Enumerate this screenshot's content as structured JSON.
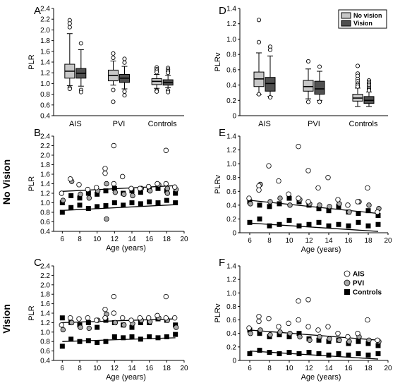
{
  "figure": {
    "row_labels": [
      "No Vision",
      "Vision"
    ],
    "panel_letters": [
      "A",
      "B",
      "C",
      "D",
      "E",
      "F"
    ]
  },
  "colors": {
    "no_vision_box": "#c8c8c8",
    "vision_box": "#505050",
    "ais_marker": "#ffffff",
    "pvi_marker": "#a8a8a8",
    "controls_marker": "#000000"
  },
  "chart_data": [
    {
      "panel": "A",
      "type": "box",
      "title": "",
      "xlabel": "",
      "ylabel": "PLR",
      "ylim": [
        0.4,
        2.4
      ],
      "yticks": [
        "0.4",
        "0.6",
        "0.8",
        "1.0",
        "1.2",
        "1.4",
        "1.6",
        "1.8",
        "2.0",
        "2.2",
        "2.4"
      ],
      "categories": [
        "AIS",
        "PVI",
        "Controls"
      ],
      "series": [
        {
          "name": "No vision",
          "boxes": [
            {
              "min": 0.96,
              "q1": 1.1,
              "median": 1.23,
              "q3": 1.36,
              "max": 1.93,
              "outliers": [
                2.18,
                2.12,
                2.05,
                0.92,
                0.9
              ]
            },
            {
              "min": 0.97,
              "q1": 1.05,
              "median": 1.15,
              "q3": 1.25,
              "max": 1.42,
              "outliers": [
                1.56,
                1.48,
                0.88,
                0.66
              ]
            },
            {
              "min": 0.91,
              "q1": 0.98,
              "median": 1.04,
              "q3": 1.09,
              "max": 1.17,
              "outliers": [
                1.3,
                1.27,
                1.24,
                1.21,
                0.87,
                0.85
              ]
            }
          ]
        },
        {
          "name": "Vision",
          "boxes": [
            {
              "min": 0.95,
              "q1": 1.1,
              "median": 1.19,
              "q3": 1.28,
              "max": 1.63,
              "outliers": [
                1.75,
                0.88,
                0.84
              ]
            },
            {
              "min": 0.9,
              "q1": 1.02,
              "median": 1.1,
              "q3": 1.17,
              "max": 1.32,
              "outliers": [
                1.46,
                1.39,
                0.85,
                0.78
              ]
            },
            {
              "min": 0.92,
              "q1": 0.97,
              "median": 1.02,
              "q3": 1.07,
              "max": 1.15,
              "outliers": [
                1.29,
                1.26,
                1.23,
                1.2,
                0.87,
                0.84
              ]
            }
          ]
        }
      ]
    },
    {
      "panel": "D",
      "type": "box",
      "title": "",
      "xlabel": "",
      "ylabel": "PLRv",
      "ylim": [
        0,
        1.4
      ],
      "yticks": [
        "0",
        "0.2",
        "0.4",
        "0.6",
        "0.8",
        "1.0",
        "1.2",
        "1.4"
      ],
      "categories": [
        "AIS",
        "PVI",
        "Controls"
      ],
      "legend": {
        "position": "top-right",
        "entries": [
          "No vision",
          "Vision"
        ]
      },
      "series": [
        {
          "name": "No vision",
          "boxes": [
            {
              "min": 0.28,
              "q1": 0.38,
              "median": 0.48,
              "q3": 0.57,
              "max": 0.82,
              "outliers": [
                1.25,
                0.96,
                0.28
              ]
            },
            {
              "min": 0.22,
              "q1": 0.32,
              "median": 0.38,
              "q3": 0.46,
              "max": 0.61,
              "outliers": [
                0.71,
                0.18
              ]
            },
            {
              "min": 0.12,
              "q1": 0.19,
              "median": 0.23,
              "q3": 0.28,
              "max": 0.36,
              "outliers": [
                0.65,
                0.55,
                0.52,
                0.48,
                0.45,
                0.42,
                0.4,
                0.38
              ]
            }
          ]
        },
        {
          "name": "Vision",
          "boxes": [
            {
              "min": 0.25,
              "q1": 0.32,
              "median": 0.42,
              "q3": 0.5,
              "max": 0.78,
              "outliers": [
                0.9,
                0.86,
                0.24
              ]
            },
            {
              "min": 0.2,
              "q1": 0.28,
              "median": 0.35,
              "q3": 0.45,
              "max": 0.58,
              "outliers": [
                0.64,
                0.18
              ]
            },
            {
              "min": 0.12,
              "q1": 0.16,
              "median": 0.2,
              "q3": 0.25,
              "max": 0.31,
              "outliers": [
                0.46,
                0.44,
                0.42,
                0.4,
                0.38,
                0.36,
                0.34,
                0.33
              ]
            }
          ]
        }
      ]
    },
    {
      "panel": "B",
      "type": "scatter",
      "title": "",
      "xlabel": "Age (years)",
      "ylabel": "PLR",
      "xlim": [
        5,
        20
      ],
      "xticks": [
        "6",
        "8",
        "10",
        "12",
        "14",
        "16",
        "18",
        "20"
      ],
      "ylim": [
        0.4,
        2.4
      ],
      "yticks": [
        "0.4",
        "0.6",
        "0.8",
        "1.0",
        "1.2",
        "1.4",
        "1.6",
        "1.8",
        "2.0",
        "2.2",
        "2.4"
      ],
      "series": [
        {
          "name": "AIS",
          "x": [
            6,
            7,
            8,
            9,
            10,
            11,
            11,
            12,
            12,
            13,
            14,
            15,
            16,
            17,
            18,
            18,
            19
          ],
          "y": [
            1.2,
            1.5,
            1.38,
            1.28,
            1.32,
            1.72,
            1.62,
            2.2,
            1.4,
            1.55,
            1.3,
            1.3,
            1.34,
            1.4,
            2.1,
            1.4,
            1.33
          ]
        },
        {
          "name": "PVI",
          "x": [
            6,
            7,
            8,
            9,
            10,
            11,
            11,
            12,
            13,
            14,
            15,
            16,
            17,
            18,
            18,
            19
          ],
          "y": [
            1.05,
            1.45,
            1.18,
            1.1,
            1.25,
            1.4,
            0.66,
            1.22,
            1.18,
            1.15,
            1.3,
            1.25,
            1.38,
            1.3,
            1.2,
            1.28
          ]
        },
        {
          "name": "Controls",
          "x": [
            6,
            6,
            7,
            7,
            8,
            8,
            9,
            9,
            10,
            10,
            11,
            11,
            12,
            12,
            13,
            13,
            14,
            14,
            15,
            15,
            16,
            16,
            17,
            17,
            18,
            18,
            19,
            19
          ],
          "y": [
            0.8,
            1.0,
            0.9,
            1.15,
            0.95,
            1.1,
            0.88,
            1.2,
            0.92,
            1.18,
            0.94,
            1.25,
            1.0,
            1.3,
            0.95,
            1.2,
            1.0,
            1.25,
            0.98,
            1.22,
            1.02,
            1.28,
            1.0,
            1.3,
            1.05,
            1.25,
            1.0,
            1.2
          ]
        }
      ],
      "bands": [
        {
          "x": [
            6,
            19
          ],
          "y": [
            1.24,
            1.36
          ]
        },
        {
          "x": [
            6,
            19
          ],
          "y": [
            0.84,
            0.96
          ]
        }
      ]
    },
    {
      "panel": "E",
      "type": "scatter",
      "title": "",
      "xlabel": "Age (years)",
      "ylabel": "PLRv",
      "xlim": [
        5,
        20
      ],
      "xticks": [
        "6",
        "8",
        "10",
        "12",
        "14",
        "16",
        "18",
        "20"
      ],
      "ylim": [
        0,
        1.4
      ],
      "yticks": [
        "0",
        "0.2",
        "0.4",
        "0.6",
        "0.8",
        "1.0",
        "1.2",
        "1.4"
      ],
      "series": [
        {
          "name": "AIS",
          "x": [
            6,
            7,
            7,
            8,
            9,
            10,
            11,
            11,
            12,
            12,
            13,
            14,
            15,
            16,
            17,
            18,
            19
          ],
          "y": [
            0.5,
            0.68,
            0.62,
            0.97,
            0.75,
            0.56,
            1.25,
            0.5,
            0.9,
            0.45,
            0.65,
            0.8,
            0.48,
            0.4,
            0.45,
            0.65,
            0.3
          ]
        },
        {
          "name": "PVI",
          "x": [
            6,
            7,
            8,
            9,
            10,
            11,
            12,
            13,
            14,
            15,
            16,
            17,
            18,
            19
          ],
          "y": [
            0.42,
            0.7,
            0.45,
            0.5,
            0.4,
            0.48,
            0.42,
            0.4,
            0.38,
            0.42,
            0.3,
            0.45,
            0.4,
            0.35
          ]
        },
        {
          "name": "Controls",
          "x": [
            6,
            6,
            7,
            7,
            8,
            8,
            9,
            9,
            10,
            10,
            11,
            11,
            12,
            12,
            13,
            13,
            14,
            14,
            15,
            15,
            16,
            16,
            17,
            17,
            18,
            18,
            19,
            19
          ],
          "y": [
            0.15,
            0.45,
            0.2,
            0.4,
            0.1,
            0.38,
            0.12,
            0.42,
            0.18,
            0.5,
            0.1,
            0.45,
            0.12,
            0.4,
            0.15,
            0.35,
            0.1,
            0.32,
            0.12,
            0.38,
            0.1,
            0.3,
            0.15,
            0.28,
            0.1,
            0.32,
            0.12,
            0.25
          ]
        }
      ],
      "bands": [
        {
          "x": [
            6,
            19
          ],
          "y": [
            0.47,
            0.28
          ]
        },
        {
          "x": [
            6,
            19
          ],
          "y": [
            0.14,
            0.02
          ]
        }
      ]
    },
    {
      "panel": "C",
      "type": "scatter",
      "title": "",
      "xlabel": "Age (years)",
      "ylabel": "PLR",
      "xlim": [
        5,
        20
      ],
      "xticks": [
        "6",
        "8",
        "10",
        "12",
        "14",
        "16",
        "18",
        "20"
      ],
      "ylim": [
        0.4,
        2.4
      ],
      "yticks": [
        "0.4",
        "0.6",
        "0.8",
        "1.0",
        "1.2",
        "1.4",
        "1.6",
        "1.8",
        "2.0",
        "2.2",
        "2.4"
      ],
      "series": [
        {
          "name": "AIS",
          "x": [
            6,
            7,
            8,
            9,
            10,
            11,
            11,
            12,
            12,
            13,
            14,
            15,
            16,
            17,
            18,
            18,
            19
          ],
          "y": [
            1.15,
            1.3,
            1.28,
            1.3,
            1.25,
            1.48,
            1.3,
            1.75,
            1.4,
            1.3,
            1.25,
            1.3,
            1.3,
            1.35,
            1.75,
            1.3,
            1.3
          ]
        },
        {
          "name": "PVI",
          "x": [
            6,
            7,
            8,
            9,
            10,
            11,
            12,
            13,
            14,
            15,
            16,
            17,
            18,
            19
          ],
          "y": [
            1.05,
            1.2,
            1.1,
            1.08,
            1.25,
            1.38,
            1.2,
            1.15,
            1.18,
            1.25,
            1.22,
            1.3,
            1.25,
            1.1
          ]
        },
        {
          "name": "Controls",
          "x": [
            6,
            6,
            7,
            7,
            8,
            8,
            9,
            9,
            10,
            10,
            11,
            11,
            12,
            12,
            13,
            13,
            14,
            14,
            15,
            15,
            16,
            16,
            17,
            17,
            18,
            18,
            19,
            19
          ],
          "y": [
            0.7,
            1.3,
            0.85,
            1.2,
            0.8,
            1.15,
            0.82,
            1.2,
            0.78,
            1.1,
            0.8,
            1.25,
            0.9,
            1.2,
            0.88,
            1.15,
            0.9,
            1.1,
            0.85,
            1.2,
            0.9,
            1.2,
            0.88,
            1.28,
            0.9,
            1.25,
            0.95,
            1.15
          ]
        }
      ],
      "bands": [
        {
          "x": [
            6,
            19
          ],
          "y": [
            1.2,
            1.28
          ]
        },
        {
          "x": [
            6,
            19
          ],
          "y": [
            0.8,
            0.88
          ]
        }
      ]
    },
    {
      "panel": "F",
      "type": "scatter",
      "title": "",
      "xlabel": "Age (years)",
      "ylabel": "PLRv",
      "xlim": [
        5,
        20
      ],
      "xticks": [
        "6",
        "8",
        "10",
        "12",
        "14",
        "16",
        "18",
        "20"
      ],
      "ylim": [
        0,
        1.4
      ],
      "yticks": [
        "0",
        "0.2",
        "0.4",
        "0.6",
        "0.8",
        "1.0",
        "1.2",
        "1.4"
      ],
      "legend": {
        "position": "top-right",
        "entries": [
          "AIS",
          "PVI",
          "Controls"
        ]
      },
      "series": [
        {
          "name": "AIS",
          "x": [
            6,
            7,
            7,
            8,
            9,
            10,
            11,
            11,
            12,
            12,
            13,
            14,
            15,
            16,
            17,
            18,
            19
          ],
          "y": [
            0.48,
            0.65,
            0.58,
            0.62,
            0.5,
            0.55,
            0.88,
            0.6,
            0.9,
            0.5,
            0.45,
            0.5,
            0.4,
            0.35,
            0.4,
            0.6,
            0.3
          ]
        },
        {
          "name": "PVI",
          "x": [
            6,
            7,
            8,
            9,
            10,
            11,
            12,
            13,
            14,
            15,
            16,
            17,
            18,
            19
          ],
          "y": [
            0.4,
            0.45,
            0.38,
            0.42,
            0.4,
            0.35,
            0.3,
            0.35,
            0.32,
            0.3,
            0.28,
            0.35,
            0.3,
            0.28
          ]
        },
        {
          "name": "Controls",
          "x": [
            6,
            6,
            7,
            7,
            8,
            8,
            9,
            9,
            10,
            10,
            11,
            11,
            12,
            12,
            13,
            13,
            14,
            14,
            15,
            15,
            16,
            16,
            17,
            17,
            18,
            18,
            19,
            19
          ],
          "y": [
            0.1,
            0.45,
            0.15,
            0.4,
            0.12,
            0.35,
            0.1,
            0.38,
            0.12,
            0.35,
            0.1,
            0.4,
            0.12,
            0.32,
            0.1,
            0.3,
            0.08,
            0.28,
            0.1,
            0.3,
            0.08,
            0.25,
            0.1,
            0.28,
            0.08,
            0.25,
            0.1,
            0.22
          ]
        }
      ],
      "bands": [
        {
          "x": [
            6,
            19
          ],
          "y": [
            0.45,
            0.3
          ]
        },
        {
          "x": [
            6,
            19
          ],
          "y": [
            0.14,
            0.02
          ]
        }
      ]
    }
  ]
}
